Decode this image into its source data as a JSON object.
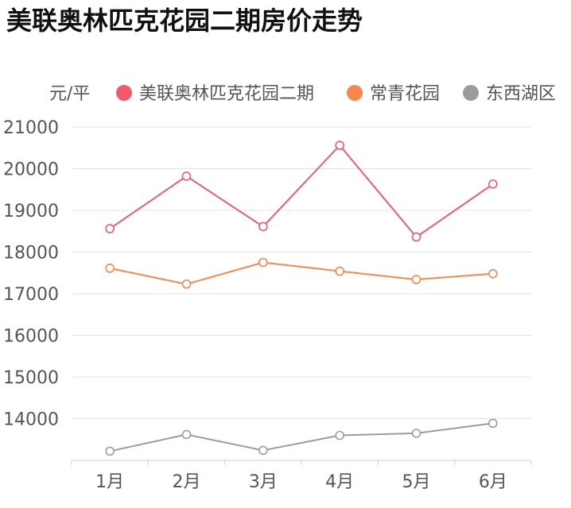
{
  "chart_data": {
    "type": "line",
    "title": "美联奥林匹克花园二期房价走势",
    "ylabel": "元/平",
    "xlabel": "",
    "categories": [
      "1月",
      "2月",
      "3月",
      "4月",
      "5月",
      "6月"
    ],
    "ylim": [
      13000,
      21000
    ],
    "yticks": [
      14000,
      15000,
      16000,
      17000,
      18000,
      19000,
      20000,
      21000
    ],
    "grid": true,
    "legend_position": "top",
    "series": [
      {
        "name": "美联奥林匹克花园二期",
        "color": "#f25a6c",
        "values": [
          18560,
          19820,
          18610,
          20560,
          18360,
          19630
        ]
      },
      {
        "name": "常青花园",
        "color": "#f8864f",
        "values": [
          17610,
          17230,
          17750,
          17540,
          17340,
          17480
        ]
      },
      {
        "name": "东西湖区",
        "color": "#9c9c9c",
        "values": [
          13220,
          13620,
          13240,
          13600,
          13650,
          13890
        ]
      }
    ]
  }
}
